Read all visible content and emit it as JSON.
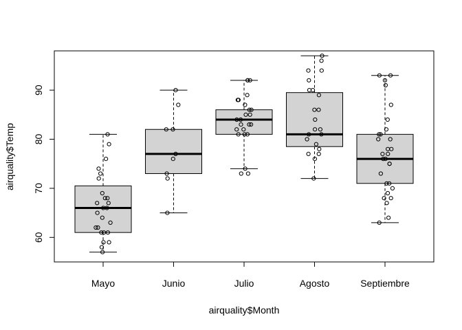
{
  "chart_data": {
    "type": "boxplot",
    "title": "",
    "xlabel": "airquality$Month",
    "ylabel": "airquality$Temp",
    "ylim": [
      55,
      98
    ],
    "yticks": [
      60,
      70,
      80,
      90
    ],
    "categories": [
      "Mayo",
      "Junio",
      "Julio",
      "Agosto",
      "Septiembre"
    ],
    "box_fill": "#d3d3d3",
    "boxes": [
      {
        "q1": 61,
        "median": 66,
        "q3": 70.5,
        "whisker_low": 57,
        "whisker_high": 81,
        "points": [
          58,
          59,
          59,
          61,
          61,
          61,
          62,
          62,
          63,
          64,
          65,
          66,
          66,
          67,
          67,
          68,
          68,
          69,
          72,
          73,
          74,
          76,
          79,
          81,
          57
        ]
      },
      {
        "q1": 73,
        "median": 77,
        "q3": 82,
        "whisker_low": 65,
        "whisker_high": 90,
        "points": [
          65,
          72,
          73,
          76,
          77,
          82,
          82,
          87,
          90
        ]
      },
      {
        "q1": 81,
        "median": 84,
        "q3": 86,
        "whisker_low": 74,
        "whisker_high": 92,
        "points": [
          73,
          73,
          74,
          81,
          81,
          81,
          82,
          82,
          83,
          83,
          83,
          84,
          84,
          85,
          85,
          86,
          86,
          87,
          88,
          88,
          89,
          92,
          92,
          92
        ]
      },
      {
        "q1": 78.5,
        "median": 81,
        "q3": 89.5,
        "whisker_low": 72,
        "whisker_high": 97,
        "points": [
          72,
          76,
          77,
          77,
          78,
          79,
          80,
          81,
          81,
          82,
          82,
          84,
          86,
          86,
          89,
          90,
          90,
          92,
          94,
          94,
          96,
          97
        ]
      },
      {
        "q1": 71,
        "median": 76,
        "q3": 81,
        "whisker_low": 63,
        "whisker_high": 93,
        "points": [
          63,
          64,
          67,
          68,
          68,
          69,
          70,
          71,
          71,
          73,
          75,
          75,
          76,
          76,
          77,
          77,
          78,
          78,
          80,
          80,
          81,
          81,
          82,
          84,
          87,
          91,
          92,
          93,
          93
        ]
      }
    ]
  }
}
